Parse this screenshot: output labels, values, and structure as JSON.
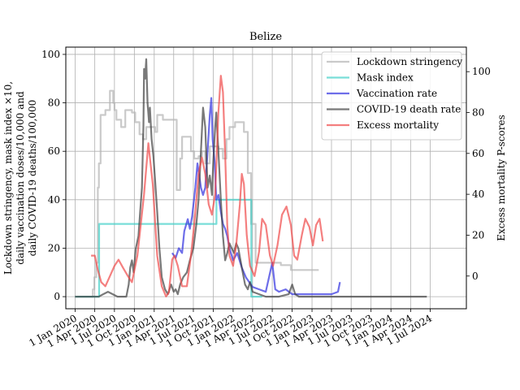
{
  "chart_data": {
    "type": "line",
    "title": "Belize",
    "ylabel_left": [
      "Lockdown stringency, mask index ×10,",
      "daily vaccination doses/10,000 and",
      "daily COVID-19 deaths/100,000"
    ],
    "ylabel_right": "Excess mortality P-scores",
    "x_ticks": [
      "1 Jan 2020",
      "1 Apr 2020",
      "1 Jul 2020",
      "1 Oct 2020",
      "1 Jan 2021",
      "1 Apr 2021",
      "1 Jul 2021",
      "1 Oct 2021",
      "1 Jan 2022",
      "1 Apr 2022",
      "1 Jul 2022",
      "1 Oct 2022",
      "1 Jan 2023",
      "1 Apr 2023",
      "1 Jul 2023",
      "1 Oct 2023",
      "1 Jan 2024",
      "1 Apr 2024",
      "1 Jul 2024"
    ],
    "xlim": [
      "2019-11-19",
      "2024-12-15"
    ],
    "ylim_left": [
      -5,
      103
    ],
    "ylim_right": [
      -16,
      112
    ],
    "yticks_left": [
      0,
      20,
      40,
      60,
      80,
      100
    ],
    "yticks_right": [
      0,
      20,
      40,
      60,
      80,
      100
    ],
    "grid": true,
    "legend_position": "top-right",
    "series": [
      {
        "name": "Lockdown stringency",
        "color": "#b3b3b3",
        "axis": "left",
        "step": true,
        "points": [
          [
            "2020-01-01",
            0
          ],
          [
            "2020-03-15",
            0
          ],
          [
            "2020-03-23",
            3
          ],
          [
            "2020-03-30",
            8
          ],
          [
            "2020-04-08",
            14
          ],
          [
            "2020-04-15",
            45
          ],
          [
            "2020-04-20",
            55
          ],
          [
            "2020-04-28",
            75
          ],
          [
            "2020-05-20",
            77
          ],
          [
            "2020-06-10",
            85
          ],
          [
            "2020-06-25",
            80
          ],
          [
            "2020-07-01",
            77
          ],
          [
            "2020-07-10",
            73
          ],
          [
            "2020-08-01",
            70
          ],
          [
            "2020-08-20",
            77
          ],
          [
            "2020-09-20",
            76
          ],
          [
            "2020-10-05",
            72
          ],
          [
            "2020-10-25",
            67
          ],
          [
            "2020-11-10",
            65
          ],
          [
            "2020-11-25",
            70
          ],
          [
            "2021-01-05",
            68
          ],
          [
            "2021-01-15",
            75
          ],
          [
            "2021-02-10",
            73
          ],
          [
            "2021-04-15",
            44
          ],
          [
            "2021-05-01",
            57
          ],
          [
            "2021-05-10",
            66
          ],
          [
            "2021-06-20",
            60
          ],
          [
            "2021-07-05",
            57
          ],
          [
            "2021-07-25",
            58
          ],
          [
            "2021-08-10",
            60
          ],
          [
            "2021-08-25",
            55
          ],
          [
            "2021-09-15",
            62
          ],
          [
            "2021-10-25",
            61
          ],
          [
            "2021-11-15",
            57
          ],
          [
            "2021-12-01",
            65
          ],
          [
            "2021-12-15",
            70
          ],
          [
            "2022-01-10",
            72
          ],
          [
            "2022-02-20",
            68
          ],
          [
            "2022-03-10",
            51
          ],
          [
            "2022-03-25",
            30
          ],
          [
            "2022-04-15",
            14
          ],
          [
            "2022-08-10",
            13
          ],
          [
            "2022-09-25",
            11
          ],
          [
            "2023-02-01",
            11
          ]
        ]
      },
      {
        "name": "Mask index",
        "color": "#40d0c8",
        "axis": "left",
        "step": true,
        "points": [
          [
            "2020-01-01",
            0
          ],
          [
            "2020-04-20",
            0
          ],
          [
            "2020-04-21",
            30
          ],
          [
            "2021-10-15",
            30
          ],
          [
            "2021-10-16",
            40
          ],
          [
            "2022-03-25",
            40
          ],
          [
            "2022-03-26",
            0
          ],
          [
            "2022-05-15",
            0
          ]
        ]
      },
      {
        "name": "Vaccination rate",
        "color": "#3030e0",
        "axis": "left",
        "points": [
          [
            "2021-03-25",
            18
          ],
          [
            "2021-04-10",
            16
          ],
          [
            "2021-04-25",
            20
          ],
          [
            "2021-05-10",
            18
          ],
          [
            "2021-05-20",
            27
          ],
          [
            "2021-06-05",
            32
          ],
          [
            "2021-06-15",
            28
          ],
          [
            "2021-06-25",
            33
          ],
          [
            "2021-07-10",
            45
          ],
          [
            "2021-07-20",
            55
          ],
          [
            "2021-07-28",
            50
          ],
          [
            "2021-08-05",
            45
          ],
          [
            "2021-08-15",
            42
          ],
          [
            "2021-08-25",
            45
          ],
          [
            "2021-09-05",
            60
          ],
          [
            "2021-09-15",
            75
          ],
          [
            "2021-09-22",
            82
          ],
          [
            "2021-09-28",
            65
          ],
          [
            "2021-10-08",
            55
          ],
          [
            "2021-10-15",
            40
          ],
          [
            "2021-10-25",
            42
          ],
          [
            "2021-11-05",
            35
          ],
          [
            "2021-11-15",
            30
          ],
          [
            "2021-11-25",
            28
          ],
          [
            "2021-12-05",
            25
          ],
          [
            "2021-12-15",
            20
          ],
          [
            "2022-01-01",
            15
          ],
          [
            "2022-01-20",
            18
          ],
          [
            "2022-02-10",
            12
          ],
          [
            "2022-03-01",
            8
          ],
          [
            "2022-04-01",
            4
          ],
          [
            "2022-05-01",
            3
          ],
          [
            "2022-06-01",
            2
          ],
          [
            "2022-07-01",
            14
          ],
          [
            "2022-07-15",
            3
          ],
          [
            "2022-08-01",
            2
          ],
          [
            "2022-09-01",
            3
          ],
          [
            "2022-10-01",
            1
          ],
          [
            "2023-01-01",
            1
          ],
          [
            "2023-04-01",
            1
          ],
          [
            "2023-05-01",
            2
          ],
          [
            "2023-05-10",
            6
          ]
        ]
      },
      {
        "name": "COVID-19 death rate",
        "color": "#404040",
        "axis": "left",
        "points": [
          [
            "2020-01-01",
            0
          ],
          [
            "2020-04-20",
            0
          ],
          [
            "2020-05-10",
            1
          ],
          [
            "2020-06-01",
            2
          ],
          [
            "2020-07-15",
            0
          ],
          [
            "2020-08-25",
            0
          ],
          [
            "2020-09-05",
            5
          ],
          [
            "2020-09-12",
            12
          ],
          [
            "2020-09-20",
            15
          ],
          [
            "2020-09-28",
            10
          ],
          [
            "2020-10-08",
            20
          ],
          [
            "2020-10-20",
            25
          ],
          [
            "2020-10-28",
            35
          ],
          [
            "2020-11-05",
            45
          ],
          [
            "2020-11-12",
            70
          ],
          [
            "2020-11-15",
            94
          ],
          [
            "2020-11-20",
            90
          ],
          [
            "2020-11-25",
            98
          ],
          [
            "2020-12-01",
            80
          ],
          [
            "2020-12-08",
            72
          ],
          [
            "2020-12-12",
            78
          ],
          [
            "2020-12-20",
            65
          ],
          [
            "2020-12-28",
            58
          ],
          [
            "2021-01-05",
            48
          ],
          [
            "2021-01-15",
            35
          ],
          [
            "2021-01-25",
            20
          ],
          [
            "2021-02-05",
            8
          ],
          [
            "2021-02-20",
            3
          ],
          [
            "2021-03-05",
            1
          ],
          [
            "2021-03-20",
            5
          ],
          [
            "2021-04-01",
            2
          ],
          [
            "2021-04-10",
            3
          ],
          [
            "2021-04-20",
            1
          ],
          [
            "2021-05-01",
            5
          ],
          [
            "2021-05-15",
            8
          ],
          [
            "2021-06-01",
            10
          ],
          [
            "2021-06-15",
            15
          ],
          [
            "2021-07-01",
            20
          ],
          [
            "2021-07-15",
            30
          ],
          [
            "2021-07-25",
            40
          ],
          [
            "2021-08-05",
            60
          ],
          [
            "2021-08-15",
            78
          ],
          [
            "2021-08-25",
            70
          ],
          [
            "2021-09-05",
            45
          ],
          [
            "2021-09-15",
            50
          ],
          [
            "2021-09-25",
            42
          ],
          [
            "2021-10-01",
            55
          ],
          [
            "2021-10-10",
            70
          ],
          [
            "2021-10-15",
            76
          ],
          [
            "2021-10-25",
            60
          ],
          [
            "2021-11-05",
            40
          ],
          [
            "2021-11-15",
            25
          ],
          [
            "2021-11-25",
            15
          ],
          [
            "2021-12-05",
            18
          ],
          [
            "2021-12-15",
            22
          ],
          [
            "2021-12-25",
            20
          ],
          [
            "2022-01-05",
            18
          ],
          [
            "2022-01-15",
            22
          ],
          [
            "2022-01-25",
            20
          ],
          [
            "2022-02-10",
            12
          ],
          [
            "2022-02-25",
            5
          ],
          [
            "2022-03-10",
            3
          ],
          [
            "2022-03-20",
            6
          ],
          [
            "2022-04-01",
            2
          ],
          [
            "2022-05-01",
            1
          ],
          [
            "2022-06-01",
            0
          ],
          [
            "2022-08-01",
            0
          ],
          [
            "2022-09-15",
            1
          ],
          [
            "2022-10-01",
            5
          ],
          [
            "2022-10-15",
            1
          ],
          [
            "2022-11-01",
            0
          ],
          [
            "2023-01-01",
            0
          ],
          [
            "2024-06-15",
            0
          ]
        ]
      },
      {
        "name": "Excess mortality",
        "color": "#f04848",
        "axis": "right",
        "points": [
          [
            "2020-03-15",
            10
          ],
          [
            "2020-04-01",
            10
          ],
          [
            "2020-04-15",
            3
          ],
          [
            "2020-05-01",
            -3
          ],
          [
            "2020-05-20",
            -5
          ],
          [
            "2020-06-10",
            0
          ],
          [
            "2020-07-01",
            5
          ],
          [
            "2020-07-20",
            8
          ],
          [
            "2020-08-10",
            4
          ],
          [
            "2020-09-01",
            0
          ],
          [
            "2020-09-20",
            -3
          ],
          [
            "2020-10-15",
            10
          ],
          [
            "2020-11-15",
            40
          ],
          [
            "2020-12-05",
            65
          ],
          [
            "2020-12-25",
            45
          ],
          [
            "2021-01-15",
            10
          ],
          [
            "2021-02-05",
            -5
          ],
          [
            "2021-02-25",
            -10
          ],
          [
            "2021-03-10",
            -8
          ],
          [
            "2021-03-25",
            8
          ],
          [
            "2021-04-05",
            10
          ],
          [
            "2021-04-20",
            5
          ],
          [
            "2021-05-10",
            -5
          ],
          [
            "2021-06-01",
            -5
          ],
          [
            "2021-06-20",
            10
          ],
          [
            "2021-07-05",
            25
          ],
          [
            "2021-07-25",
            50
          ],
          [
            "2021-08-10",
            58
          ],
          [
            "2021-08-25",
            50
          ],
          [
            "2021-09-10",
            35
          ],
          [
            "2021-09-25",
            30
          ],
          [
            "2021-10-10",
            40
          ],
          [
            "2021-10-25",
            80
          ],
          [
            "2021-11-05",
            98
          ],
          [
            "2021-11-15",
            90
          ],
          [
            "2021-11-25",
            60
          ],
          [
            "2021-12-05",
            25
          ],
          [
            "2021-12-15",
            10
          ],
          [
            "2022-01-01",
            5
          ],
          [
            "2022-01-15",
            15
          ],
          [
            "2022-02-01",
            35
          ],
          [
            "2022-02-10",
            50
          ],
          [
            "2022-02-20",
            45
          ],
          [
            "2022-03-05",
            20
          ],
          [
            "2022-03-20",
            5
          ],
          [
            "2022-04-10",
            0
          ],
          [
            "2022-05-01",
            12
          ],
          [
            "2022-05-15",
            28
          ],
          [
            "2022-06-01",
            25
          ],
          [
            "2022-06-20",
            10
          ],
          [
            "2022-07-05",
            5
          ],
          [
            "2022-07-25",
            15
          ],
          [
            "2022-08-15",
            30
          ],
          [
            "2022-09-05",
            34
          ],
          [
            "2022-09-25",
            25
          ],
          [
            "2022-10-10",
            10
          ],
          [
            "2022-10-25",
            8
          ],
          [
            "2022-11-15",
            20
          ],
          [
            "2022-12-01",
            28
          ],
          [
            "2022-12-20",
            24
          ],
          [
            "2023-01-05",
            15
          ],
          [
            "2023-01-20",
            25
          ],
          [
            "2023-02-05",
            28
          ],
          [
            "2023-02-20",
            17
          ]
        ]
      }
    ]
  }
}
